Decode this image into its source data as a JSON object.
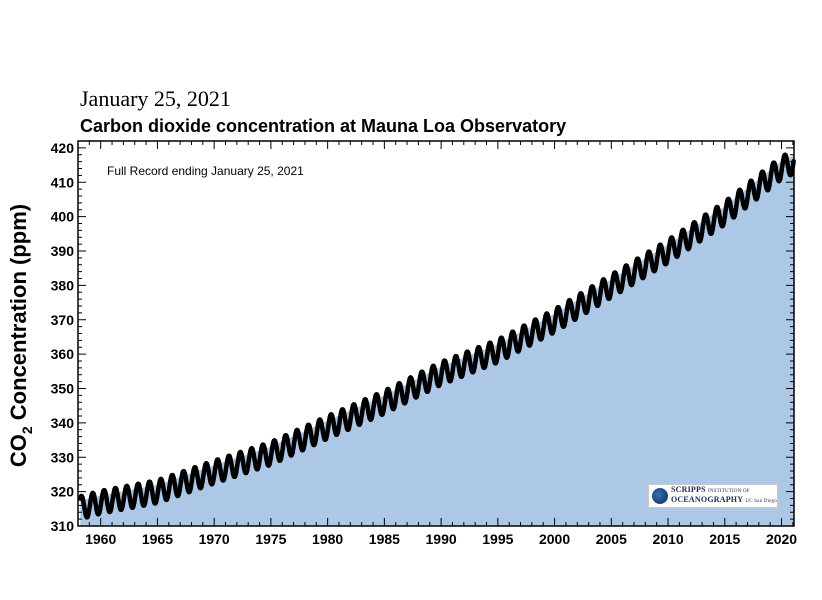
{
  "header": {
    "date": "January 25, 2021",
    "title": "Carbon dioxide concentration at Mauna Loa Observatory"
  },
  "logo": {
    "line1": "SCRIPPS",
    "line1_small": "INSTITUTION OF",
    "line2": "OCEANOGRAPHY",
    "line2_small": "UC San Diego"
  },
  "colors": {
    "fill": "#adc8e6",
    "points": "#000000",
    "axis": "#000000"
  },
  "chart_data": {
    "type": "scatter",
    "title": "Carbon dioxide concentration at Mauna Loa Observatory",
    "annotation": "Full Record ending January 25, 2021",
    "ylabel_main": "CO",
    "ylabel_sub": "2",
    "ylabel_rest": " Concentration (ppm)",
    "xlabel": "",
    "xlim": [
      1958,
      2021.1
    ],
    "ylim": [
      310,
      422
    ],
    "x_ticks": [
      1960,
      1965,
      1970,
      1975,
      1980,
      1985,
      1990,
      1995,
      2000,
      2005,
      2010,
      2015,
      2020
    ],
    "y_ticks": [
      310,
      320,
      330,
      340,
      350,
      360,
      370,
      380,
      390,
      400,
      410,
      420
    ],
    "area_fill_under_curve": true,
    "seasonal_amplitude_ppm": 3.3,
    "trend_points": {
      "x": [
        1958.2,
        1960,
        1965,
        1970,
        1975,
        1980,
        1985,
        1990,
        1995,
        2000,
        2005,
        2010,
        2015,
        2020,
        2021.07
      ],
      "y": [
        315.3,
        316.9,
        320.0,
        325.7,
        331.1,
        338.7,
        346.0,
        354.4,
        360.9,
        369.7,
        379.8,
        389.9,
        401.0,
        414.2,
        415.8
      ]
    }
  }
}
